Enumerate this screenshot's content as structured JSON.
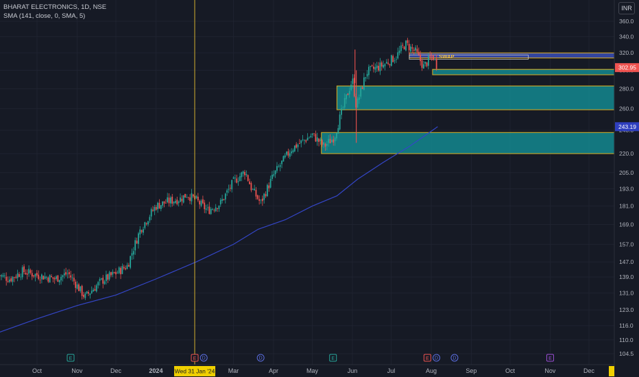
{
  "legend": {
    "symbol_line": "BHARAT ELECTRONICS, 1D, NSE",
    "indicator_line": "SMA (141, close, 0, SMA, 5)"
  },
  "currency": "INR",
  "crosshair": {
    "date_label": "Wed 31 Jan '24"
  },
  "zone_labels": {
    "swap": "SWAP"
  },
  "colors": {
    "background": "#161a25",
    "grid": "#1f2330",
    "up": "#26a69a",
    "down": "#ef5350",
    "sma": "#3446c8",
    "zone_fill": "#138e96",
    "zone_border": "#e0b020",
    "swap_fill": "#3a4fb5",
    "crosshair": "#d4b030",
    "axis_text": "#b2b5be"
  },
  "chart_data": {
    "type": "candlestick",
    "title": "BHARAT ELECTRONICS, 1D, NSE",
    "x_ticks": [
      "Oct",
      "Nov",
      "Dec",
      "2024",
      "Mar",
      "Apr",
      "May",
      "Jun",
      "Jul",
      "Aug",
      "Sep",
      "Oct",
      "Nov",
      "Dec"
    ],
    "y_ticks": [
      360.0,
      340.0,
      320.0,
      300.0,
      280.0,
      260.0,
      240.0,
      220.0,
      205.0,
      193.0,
      181.0,
      169.0,
      157.0,
      147.0,
      139.0,
      131.0,
      123.0,
      116.0,
      110.0,
      104.5
    ],
    "y_scale": "log",
    "y_range": [
      102,
      372
    ],
    "price_tags": [
      {
        "value": 302.95,
        "label": "302.95",
        "color": "#ef5350"
      },
      {
        "value": 243.19,
        "label": "243.19",
        "color": "#2f3fbf"
      }
    ],
    "events": [
      {
        "date": "2023-10-27",
        "type": "E"
      },
      {
        "date": "2024-01-31",
        "type": "E"
      },
      {
        "date": "2024-02-07",
        "type": "D"
      },
      {
        "date": "2024-03-22",
        "type": "D"
      },
      {
        "date": "2024-05-17",
        "type": "E"
      },
      {
        "date": "2024-07-29",
        "type": "E"
      },
      {
        "date": "2024-08-05",
        "type": "D"
      },
      {
        "date": "2024-08-19",
        "type": "D"
      },
      {
        "date": "2024-11-01",
        "type": "E"
      }
    ],
    "zones": [
      {
        "from": "2024-07-15",
        "to": "2025-01-15",
        "low": 314,
        "high": 320,
        "label": "SWAP"
      },
      {
        "from": "2024-08-02",
        "to": "2025-01-15",
        "low": 295,
        "high": 301
      },
      {
        "from": "2024-05-20",
        "to": "2025-01-15",
        "low": 259,
        "high": 283
      },
      {
        "from": "2024-05-08",
        "to": "2025-01-15",
        "low": 220,
        "high": 238
      }
    ],
    "sma_points": [
      [
        "2023-09-01",
        113
      ],
      [
        "2023-10-01",
        119
      ],
      [
        "2023-11-01",
        125
      ],
      [
        "2023-12-01",
        130
      ],
      [
        "2024-01-01",
        138
      ],
      [
        "2024-02-01",
        147
      ],
      [
        "2024-03-01",
        157
      ],
      [
        "2024-03-20",
        166
      ],
      [
        "2024-04-10",
        172
      ],
      [
        "2024-05-01",
        181
      ],
      [
        "2024-05-20",
        188
      ],
      [
        "2024-06-05",
        200
      ],
      [
        "2024-06-25",
        213
      ],
      [
        "2024-07-15",
        226
      ],
      [
        "2024-08-06",
        243.19
      ]
    ],
    "price_anchors": [
      [
        "2023-09-01",
        140
      ],
      [
        "2023-09-10",
        138
      ],
      [
        "2023-09-20",
        142
      ],
      [
        "2023-10-01",
        140
      ],
      [
        "2023-10-15",
        138
      ],
      [
        "2023-10-25",
        141
      ],
      [
        "2023-11-07",
        129
      ],
      [
        "2023-11-20",
        137
      ],
      [
        "2023-12-01",
        141
      ],
      [
        "2023-12-10",
        145
      ],
      [
        "2023-12-20",
        166
      ],
      [
        "2024-01-01",
        181
      ],
      [
        "2024-01-10",
        184
      ],
      [
        "2024-01-20",
        186
      ],
      [
        "2024-01-25",
        189
      ],
      [
        "2024-02-01",
        185
      ],
      [
        "2024-02-10",
        178
      ],
      [
        "2024-02-20",
        183
      ],
      [
        "2024-03-01",
        198
      ],
      [
        "2024-03-10",
        206
      ],
      [
        "2024-03-15",
        193
      ],
      [
        "2024-03-22",
        183
      ],
      [
        "2024-04-01",
        203
      ],
      [
        "2024-04-15",
        224
      ],
      [
        "2024-05-01",
        236
      ],
      [
        "2024-05-10",
        226
      ],
      [
        "2024-05-18",
        234
      ],
      [
        "2024-05-25",
        262
      ],
      [
        "2024-06-01",
        290
      ],
      [
        "2024-06-04",
        262
      ],
      [
        "2024-06-12",
        298
      ],
      [
        "2024-06-25",
        306
      ],
      [
        "2024-07-05",
        316
      ],
      [
        "2024-07-12",
        331
      ],
      [
        "2024-07-20",
        321
      ],
      [
        "2024-07-26",
        304
      ],
      [
        "2024-08-02",
        317
      ],
      [
        "2024-08-06",
        302.95
      ]
    ]
  }
}
